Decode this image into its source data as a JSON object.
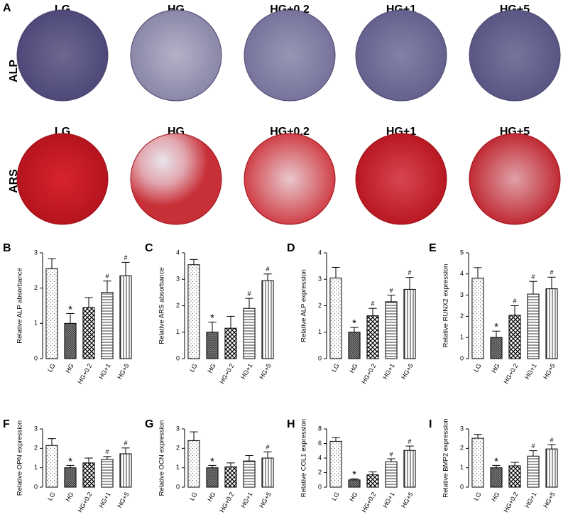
{
  "panel_a": {
    "label": "A",
    "rows": [
      {
        "label": "ALP",
        "columns": [
          "LG",
          "HG",
          "HG+0.2",
          "HG+1",
          "HG+5"
        ]
      },
      {
        "label": "ARS",
        "columns": [
          "LG",
          "HG",
          "HG+0.2",
          "HG+1",
          "HG+5"
        ]
      }
    ]
  },
  "chart_data": [
    {
      "type": "bar",
      "panel": "B",
      "ylabel": "Relative ALP absorbance",
      "categories": [
        "LG",
        "HG",
        "HG+0.2",
        "HG+1",
        "HG+5"
      ],
      "values": [
        2.55,
        1.0,
        1.45,
        1.88,
        2.35
      ],
      "errors": [
        0.28,
        0.28,
        0.28,
        0.32,
        0.38
      ],
      "markers": [
        null,
        "*",
        null,
        "#",
        "#"
      ],
      "ylim": [
        0,
        3
      ],
      "yticks": [
        0,
        1,
        2,
        3
      ]
    },
    {
      "type": "bar",
      "panel": "C",
      "ylabel": "Relative ARS absorbance",
      "categories": [
        "LG",
        "HG",
        "HG+0.2",
        "HG+1",
        "HG+5"
      ],
      "values": [
        3.55,
        1.0,
        1.15,
        1.9,
        2.95
      ],
      "errors": [
        0.2,
        0.38,
        0.45,
        0.38,
        0.25
      ],
      "markers": [
        null,
        "*",
        null,
        "#",
        "#"
      ],
      "ylim": [
        0,
        4
      ],
      "yticks": [
        0,
        1,
        2,
        3,
        4
      ]
    },
    {
      "type": "bar",
      "panel": "D",
      "ylabel": "Relative ALP expression",
      "categories": [
        "LG",
        "HG",
        "HG+0.2",
        "HG+1",
        "HG+5"
      ],
      "values": [
        3.05,
        1.0,
        1.62,
        2.15,
        2.62
      ],
      "errors": [
        0.4,
        0.18,
        0.28,
        0.25,
        0.45
      ],
      "markers": [
        null,
        "*",
        "#",
        "#",
        "#"
      ],
      "ylim": [
        0,
        4
      ],
      "yticks": [
        0,
        1,
        2,
        3,
        4
      ]
    },
    {
      "type": "bar",
      "panel": "E",
      "ylabel": "Relative RUNX2 expression",
      "categories": [
        "LG",
        "HG",
        "HG+0.2",
        "HG+1",
        "HG+5"
      ],
      "values": [
        3.8,
        1.0,
        2.05,
        3.05,
        3.3
      ],
      "errors": [
        0.5,
        0.3,
        0.45,
        0.6,
        0.55
      ],
      "markers": [
        null,
        "*",
        "#",
        "#",
        "#"
      ],
      "ylim": [
        0,
        5
      ],
      "yticks": [
        0,
        1,
        2,
        3,
        4,
        5
      ]
    },
    {
      "type": "bar",
      "panel": "F",
      "ylabel": "Relative OPN expression",
      "categories": [
        "LG",
        "HG",
        "HG+0.2",
        "HG+1",
        "HG+5"
      ],
      "values": [
        2.15,
        1.0,
        1.25,
        1.43,
        1.72
      ],
      "errors": [
        0.35,
        0.12,
        0.25,
        0.15,
        0.3
      ],
      "markers": [
        null,
        "*",
        null,
        "#",
        "#"
      ],
      "ylim": [
        0,
        3
      ],
      "yticks": [
        0,
        1,
        2,
        3
      ]
    },
    {
      "type": "bar",
      "panel": "G",
      "ylabel": "Relative OCN expression",
      "categories": [
        "LG",
        "HG",
        "HG+0.2",
        "HG+1",
        "HG+5"
      ],
      "values": [
        2.4,
        1.0,
        1.05,
        1.35,
        1.5
      ],
      "errors": [
        0.45,
        0.12,
        0.2,
        0.28,
        0.32
      ],
      "markers": [
        null,
        "*",
        null,
        null,
        "#"
      ],
      "ylim": [
        0,
        3
      ],
      "yticks": [
        0,
        1,
        2,
        3
      ]
    },
    {
      "type": "bar",
      "panel": "H",
      "ylabel": "Relative COL1 expression",
      "categories": [
        "LG",
        "HG",
        "HG+0.2",
        "HG+1",
        "HG+5"
      ],
      "values": [
        6.3,
        1.0,
        1.7,
        3.5,
        5.05
      ],
      "errors": [
        0.5,
        0.15,
        0.4,
        0.4,
        0.6
      ],
      "markers": [
        null,
        "*",
        null,
        "#",
        "#"
      ],
      "ylim": [
        0,
        8
      ],
      "yticks": [
        0,
        2,
        4,
        6,
        8
      ]
    },
    {
      "type": "bar",
      "panel": "I",
      "ylabel": "Relative BMP2 expression",
      "categories": [
        "LG",
        "HG",
        "HG+0.2",
        "HG+1",
        "HG+5"
      ],
      "values": [
        2.52,
        1.0,
        1.1,
        1.6,
        1.97
      ],
      "errors": [
        0.2,
        0.12,
        0.18,
        0.28,
        0.22
      ],
      "markers": [
        null,
        "*",
        null,
        "#",
        "#"
      ],
      "ylim": [
        0,
        3
      ],
      "yticks": [
        0,
        1,
        2,
        3
      ]
    }
  ]
}
